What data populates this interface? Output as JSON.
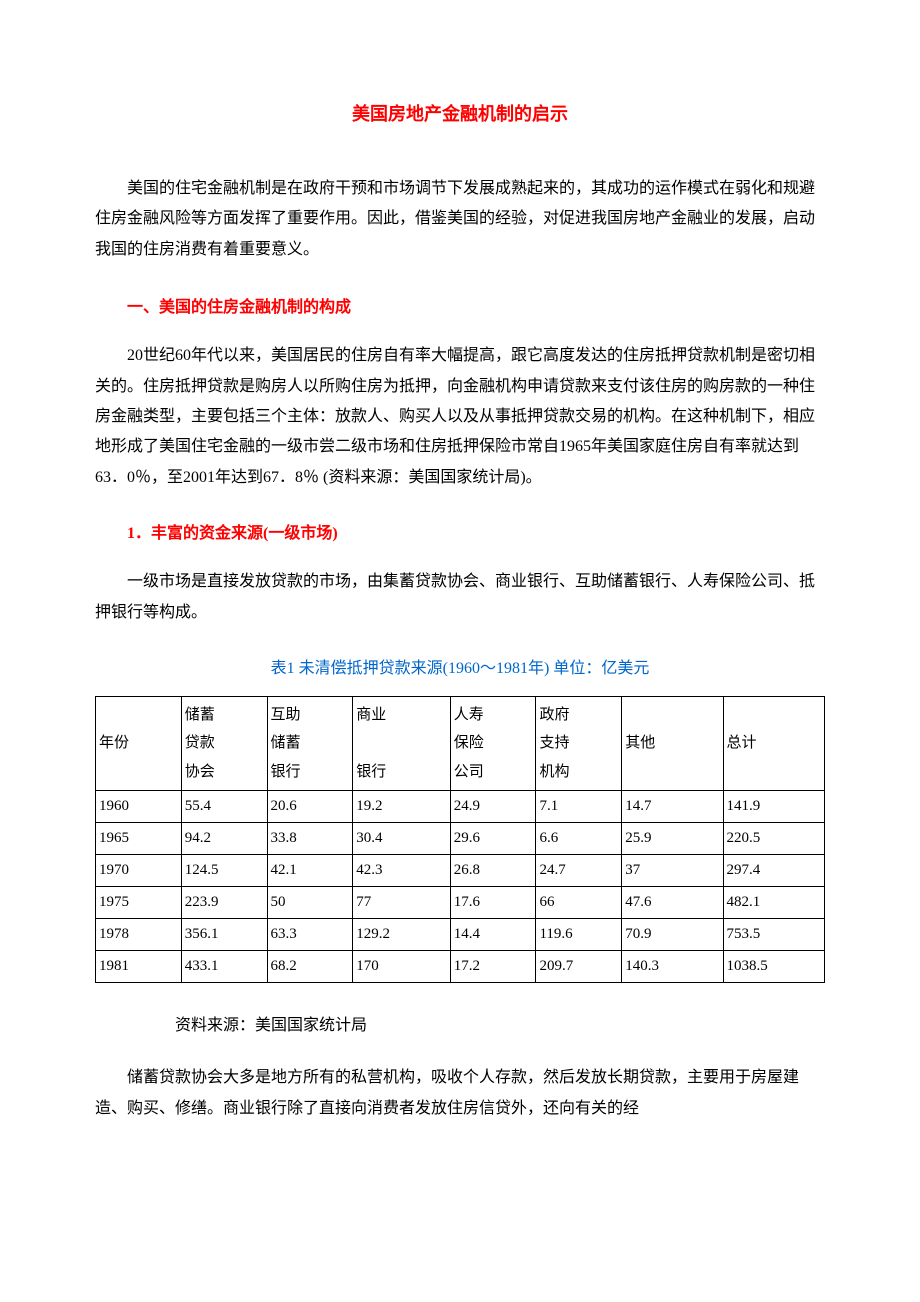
{
  "title": "美国房地产金融机制的启示",
  "intro": "美国的住宅金融机制是在政府干预和市场调节下发展成熟起来的，其成功的运作模式在弱化和规避住房金融风险等方面发挥了重要作用。因此，借鉴美国的经验，对促进我国房地产金融业的发展，启动我国的住房消费有着重要意义。",
  "section1_heading": "一、美国的住房金融机制的构成",
  "section1_para": "20世纪60年代以来，美国居民的住房自有率大幅提高，跟它高度发达的住房抵押贷款机制是密切相关的。住房抵押贷款是购房人以所购住房为抵押，向金融机构申请贷款来支付该住房的购房款的一种住房金融类型，主要包括三个主体：放款人、购买人以及从事抵押贷款交易的机构。在这种机制下，相应地形成了美国住宅金融的一级市尝二级市场和住房抵押保险市常自1965年美国家庭住房自有率就达到63．0％，至2001年达到67．8％ (资料来源：美国国家统计局)。",
  "sub1_heading": "1．丰富的资金来源(一级市场)",
  "sub1_para": "一级市场是直接发放贷款的市场，由集蓄贷款协会、商业银行、互助储蓄银行、人寿保险公司、抵押银行等构成。",
  "table_caption": "表1 未清偿抵押贷款来源(1960～1981年) 单位：亿美元",
  "table": {
    "type": "table",
    "columns": [
      "年份",
      "储蓄\n贷款\n协会",
      "互助\n储蓄\n银行",
      "商业\n\n银行",
      "人寿\n保险\n公司",
      "政府\n支持\n机构",
      "其他",
      "总计"
    ],
    "rows": [
      [
        "1960",
        "55.4",
        "20.6",
        "19.2",
        "24.9",
        "7.1",
        "14.7",
        "141.9"
      ],
      [
        "1965",
        "94.2",
        "33.8",
        "30.4",
        "29.6",
        "6.6",
        "25.9",
        "220.5"
      ],
      [
        "1970",
        "124.5",
        "42.1",
        "42.3",
        "26.8",
        "24.7",
        "37",
        "297.4"
      ],
      [
        "1975",
        "223.9",
        "50",
        "77",
        "17.6",
        "66",
        "47.6",
        "482.1"
      ],
      [
        "1978",
        "356.1",
        "63.3",
        "129.2",
        "14.4",
        "119.6",
        "70.9",
        "753.5"
      ],
      [
        "1981",
        "433.1",
        "68.2",
        "170",
        "17.2",
        "209.7",
        "140.3",
        "1038.5"
      ]
    ],
    "border_color": "#000000",
    "text_color": "#000000",
    "fontsize": 15
  },
  "source_note": "资料来源：美国国家统计局",
  "closing_para": "储蓄贷款协会大多是地方所有的私营机构，吸收个人存款，然后发放长期贷款，主要用于房屋建造、购买、修缮。商业银行除了直接向消费者发放住房信贷外，还向有关的经",
  "colors": {
    "heading_red": "#ff0000",
    "caption_blue": "#0066cc",
    "body_text": "#000000",
    "background": "#ffffff",
    "table_border": "#000000"
  },
  "typography": {
    "title_fontsize": 18,
    "body_fontsize": 16,
    "table_fontsize": 15,
    "line_height": 1.9,
    "font_family": "SimSun"
  }
}
